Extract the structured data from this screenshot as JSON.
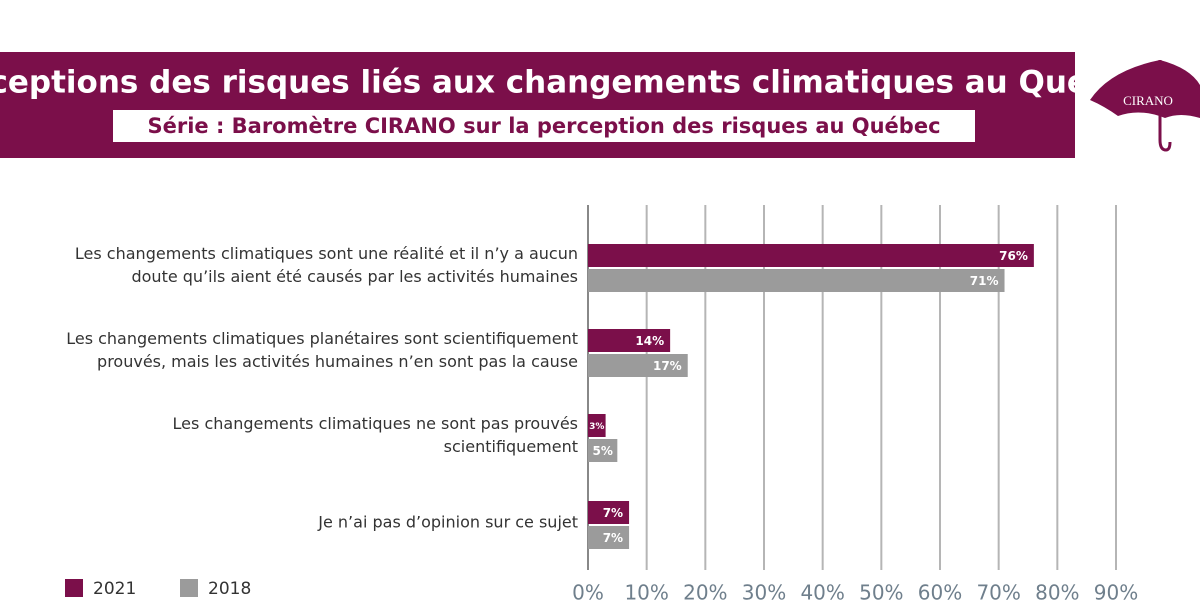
{
  "chart_data": {
    "type": "bar",
    "orientation": "horizontal",
    "title": "Perceptions des risques liés aux changements climatiques au Québec",
    "subtitle": "Série : Baromètre CIRANO sur la perception des risques au Québec",
    "logo": "CIRANO",
    "categories": [
      [
        "Les changements climatiques sont une réalité et il n’y a aucun",
        "doute qu’ils aient été causés par les activités humaines"
      ],
      [
        "Les changements climatiques planétaires sont scientifiquement",
        "prouvés, mais les activités humaines n’en sont pas la cause"
      ],
      [
        "Les changements climatiques ne sont pas prouvés",
        "scientifiquement"
      ],
      [
        "Je n’ai pas d’opinion sur ce sujet"
      ]
    ],
    "series": [
      {
        "name": "2021",
        "color": "#7b0f4a",
        "values": [
          76,
          14,
          3,
          7
        ],
        "value_labels": [
          "76%",
          "14%",
          "3%",
          "7%"
        ]
      },
      {
        "name": "2018",
        "color": "#9b9b9b",
        "values": [
          71,
          17,
          5,
          7
        ],
        "value_labels": [
          "71%",
          "17%",
          "5%",
          "7%"
        ]
      }
    ],
    "xlim": [
      0,
      90
    ],
    "xticks": [
      {
        "value": 0,
        "label": "0%"
      },
      {
        "value": 10,
        "label": "10%"
      },
      {
        "value": 20,
        "label": "20%"
      },
      {
        "value": 30,
        "label": "30%"
      },
      {
        "value": 40,
        "label": "40%"
      },
      {
        "value": 50,
        "label": "50%"
      },
      {
        "value": 60,
        "label": "60%"
      },
      {
        "value": 70,
        "label": "70%"
      },
      {
        "value": 80,
        "label": "80%"
      },
      {
        "value": 90,
        "label": "90%"
      }
    ],
    "grid": true,
    "legend": "bottom-left"
  }
}
